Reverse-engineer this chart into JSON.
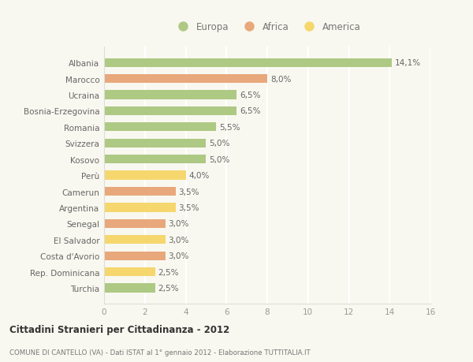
{
  "countries": [
    "Albania",
    "Marocco",
    "Ucraina",
    "Bosnia-Erzegovina",
    "Romania",
    "Svizzera",
    "Kosovo",
    "Perù",
    "Camerun",
    "Argentina",
    "Senegal",
    "El Salvador",
    "Costa d'Avorio",
    "Rep. Dominicana",
    "Turchia"
  ],
  "values": [
    14.1,
    8.0,
    6.5,
    6.5,
    5.5,
    5.0,
    5.0,
    4.0,
    3.5,
    3.5,
    3.0,
    3.0,
    3.0,
    2.5,
    2.5
  ],
  "labels": [
    "14,1%",
    "8,0%",
    "6,5%",
    "6,5%",
    "5,5%",
    "5,0%",
    "5,0%",
    "4,0%",
    "3,5%",
    "3,5%",
    "3,0%",
    "3,0%",
    "3,0%",
    "2,5%",
    "2,5%"
  ],
  "continents": [
    "Europa",
    "Africa",
    "Europa",
    "Europa",
    "Europa",
    "Europa",
    "Europa",
    "America",
    "Africa",
    "America",
    "Africa",
    "America",
    "Africa",
    "America",
    "Europa"
  ],
  "colors": {
    "Europa": "#aec984",
    "Africa": "#e8a87c",
    "America": "#f5d76e"
  },
  "xlim": [
    0,
    16
  ],
  "xticks": [
    0,
    2,
    4,
    6,
    8,
    10,
    12,
    14,
    16
  ],
  "title": "Cittadini Stranieri per Cittadinanza - 2012",
  "subtitle": "COMUNE DI CANTELLO (VA) - Dati ISTAT al 1° gennaio 2012 - Elaborazione TUTTITALIA.IT",
  "background_color": "#f8f8f0",
  "grid_color": "#ffffff",
  "bar_height": 0.55,
  "legend_items": [
    "Europa",
    "Africa",
    "America"
  ]
}
